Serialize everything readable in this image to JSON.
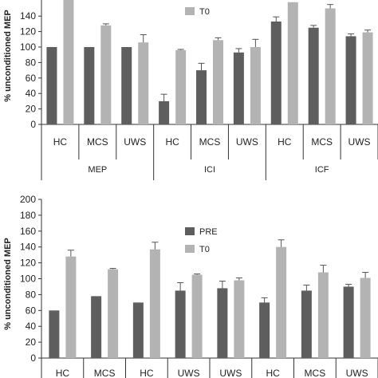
{
  "colors": {
    "pre": "#5e5e5e",
    "t0": "#b3b3b3",
    "axis": "#333333"
  },
  "chart_data": [
    {
      "type": "bar",
      "ylabel": "% unconditioned MEP",
      "ylim": [
        0,
        200
      ],
      "yticks": [
        0,
        20,
        40,
        60,
        80,
        100,
        120,
        140
      ],
      "legend_visible": [
        "T0"
      ],
      "categories": [
        "HC",
        "MCS",
        "UWS",
        "HC",
        "MCS",
        "UWS",
        "HC",
        "MCS",
        "UWS"
      ],
      "groups": [
        {
          "label": "MEP",
          "span": [
            0,
            2
          ]
        },
        {
          "label": "ICI",
          "span": [
            3,
            5
          ]
        },
        {
          "label": "ICF",
          "span": [
            6,
            8
          ]
        }
      ],
      "series": [
        {
          "name": "PRE",
          "values": [
            100,
            100,
            100,
            30,
            70,
            93,
            133,
            125,
            114
          ],
          "errors": [
            0,
            0,
            0,
            9,
            9,
            5,
            6,
            3,
            3
          ]
        },
        {
          "name": "T0",
          "values": [
            165,
            128,
            106,
            96,
            109,
            100,
            158,
            150,
            119
          ],
          "errors": [
            0,
            2,
            10,
            1,
            3,
            10,
            0,
            5,
            3
          ]
        }
      ]
    },
    {
      "type": "bar",
      "ylabel": "% unconditioned MEP",
      "ylim": [
        0,
        200
      ],
      "yticks": [
        0,
        20,
        40,
        60,
        80,
        100,
        120,
        140,
        160,
        180,
        200
      ],
      "legend": [
        "PRE",
        "T0"
      ],
      "categories": [
        "HC",
        "MCS",
        "HC",
        "UWS",
        "UWS",
        "HC",
        "MCS",
        "UWS"
      ],
      "series": [
        {
          "name": "PRE",
          "values": [
            60,
            78,
            70,
            85,
            88,
            70,
            85,
            90
          ],
          "errors": [
            0,
            0,
            0,
            10,
            9,
            6,
            7,
            3
          ]
        },
        {
          "name": "T0",
          "values": [
            128,
            112,
            137,
            105,
            98,
            140,
            108,
            101
          ],
          "errors": [
            8,
            1,
            9,
            1,
            3,
            9,
            9,
            7
          ]
        }
      ]
    }
  ]
}
